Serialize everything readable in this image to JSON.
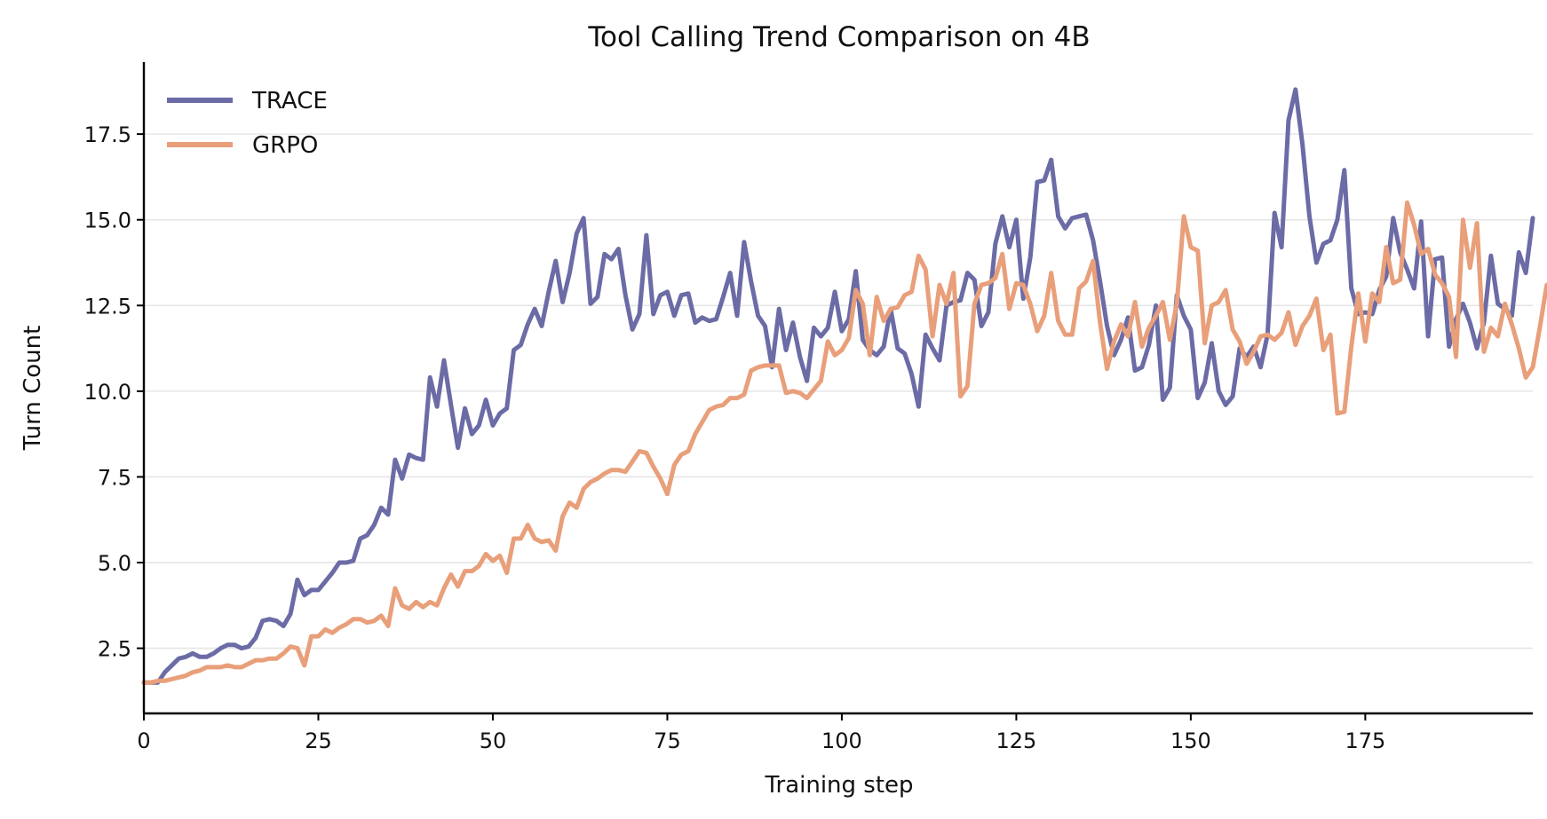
{
  "chart_data": {
    "type": "line",
    "title": "Tool Calling Trend Comparison on 4B",
    "xlabel": "Training step",
    "ylabel": "Turn Count",
    "xlim": [
      0,
      199
    ],
    "ylim": [
      0.6,
      19.6
    ],
    "xticks": [
      0,
      25,
      50,
      75,
      100,
      125,
      150,
      175
    ],
    "xtick_labels": [
      "0",
      "25",
      "50",
      "75",
      "100",
      "125",
      "150",
      "175"
    ],
    "yticks": [
      2.5,
      5.0,
      7.5,
      10.0,
      12.5,
      15.0,
      17.5
    ],
    "ytick_labels": [
      "2.5",
      "5.0",
      "7.5",
      "10.0",
      "12.5",
      "15.0",
      "17.5"
    ],
    "grid": "horizontal",
    "legend_position": "top-left",
    "series": [
      {
        "name": "TRACE",
        "color": "#6b6ba6",
        "values": [
          1.5,
          1.5,
          1.5,
          1.8,
          2.0,
          2.2,
          2.25,
          2.35,
          2.25,
          2.25,
          2.35,
          2.5,
          2.6,
          2.6,
          2.5,
          2.55,
          2.8,
          3.3,
          3.35,
          3.3,
          3.15,
          3.5,
          4.5,
          4.05,
          4.2,
          4.2,
          4.45,
          4.7,
          5.0,
          5.0,
          5.05,
          5.7,
          5.8,
          6.1,
          6.6,
          6.4,
          8.0,
          7.45,
          8.15,
          8.05,
          8.0,
          10.4,
          9.55,
          10.9,
          9.6,
          8.35,
          9.5,
          8.75,
          9.0,
          9.75,
          9.0,
          9.35,
          9.5,
          11.2,
          11.35,
          11.95,
          12.4,
          11.9,
          12.9,
          13.8,
          12.6,
          13.45,
          14.6,
          15.05,
          12.55,
          12.75,
          14.0,
          13.85,
          14.15,
          12.8,
          11.8,
          12.25,
          14.55,
          12.25,
          12.8,
          12.9,
          12.2,
          12.8,
          12.85,
          12.0,
          12.15,
          12.05,
          12.1,
          12.75,
          13.45,
          12.2,
          14.35,
          13.2,
          12.2,
          11.9,
          10.7,
          12.4,
          11.2,
          12.0,
          11.0,
          10.3,
          11.85,
          11.6,
          11.85,
          12.9,
          11.75,
          12.1,
          13.5,
          11.5,
          11.2,
          11.05,
          11.3,
          12.4,
          11.25,
          11.1,
          10.5,
          9.55,
          11.65,
          11.25,
          10.9,
          12.5,
          12.6,
          12.65,
          13.45,
          13.25,
          11.9,
          12.3,
          14.3,
          15.1,
          14.2,
          15.0,
          12.7,
          13.9,
          16.1,
          16.15,
          16.75,
          15.1,
          14.75,
          15.05,
          15.1,
          15.15,
          14.4,
          13.2,
          11.9,
          11.05,
          11.5,
          12.15,
          10.6,
          10.7,
          11.35,
          12.5,
          9.75,
          10.1,
          12.8,
          12.2,
          11.8,
          9.8,
          10.25,
          11.4,
          10.0,
          9.6,
          9.85,
          11.25,
          11.0,
          11.3,
          10.7,
          11.65,
          15.2,
          14.2,
          17.9,
          18.8,
          17.2,
          15.1,
          13.75,
          14.3,
          14.4,
          15.0,
          16.45,
          13.0,
          12.25,
          12.3,
          12.25,
          12.95,
          13.35,
          15.05,
          14.05,
          13.55,
          13.0,
          14.95,
          11.6,
          13.85,
          13.9,
          11.3,
          12.1,
          12.55,
          12.0,
          11.25,
          12.0,
          13.95,
          12.55,
          12.4,
          12.2,
          14.05,
          13.45,
          15.05
        ]
      },
      {
        "name": "GRPO",
        "color": "#e89f7a",
        "values": [
          1.5,
          1.5,
          1.55,
          1.55,
          1.6,
          1.65,
          1.7,
          1.8,
          1.85,
          1.95,
          1.95,
          1.95,
          2.0,
          1.95,
          1.95,
          2.05,
          2.15,
          2.15,
          2.2,
          2.2,
          2.35,
          2.55,
          2.5,
          2.0,
          2.85,
          2.85,
          3.05,
          2.95,
          3.1,
          3.2,
          3.35,
          3.35,
          3.25,
          3.3,
          3.45,
          3.15,
          4.25,
          3.75,
          3.65,
          3.85,
          3.7,
          3.85,
          3.75,
          4.25,
          4.65,
          4.3,
          4.75,
          4.75,
          4.9,
          5.25,
          5.05,
          5.2,
          4.7,
          5.7,
          5.7,
          6.1,
          5.7,
          5.6,
          5.65,
          5.35,
          6.35,
          6.75,
          6.6,
          7.15,
          7.35,
          7.45,
          7.6,
          7.7,
          7.7,
          7.65,
          7.95,
          8.25,
          8.2,
          7.8,
          7.45,
          7.0,
          7.85,
          8.15,
          8.25,
          8.75,
          9.1,
          9.45,
          9.55,
          9.6,
          9.8,
          9.8,
          9.9,
          10.6,
          10.7,
          10.75,
          10.75,
          10.75,
          9.95,
          10.0,
          9.95,
          9.8,
          10.05,
          10.3,
          11.45,
          11.05,
          11.2,
          11.55,
          12.95,
          12.55,
          11.05,
          12.75,
          12.05,
          12.4,
          12.45,
          12.8,
          12.9,
          13.95,
          13.55,
          11.6,
          13.1,
          12.55,
          13.45,
          9.85,
          10.15,
          12.55,
          13.1,
          13.15,
          13.3,
          14.0,
          12.4,
          13.15,
          13.1,
          12.55,
          11.75,
          12.2,
          13.45,
          12.05,
          11.65,
          11.65,
          13.0,
          13.2,
          13.8,
          12.0,
          10.65,
          11.45,
          11.95,
          11.6,
          12.6,
          11.3,
          11.85,
          12.2,
          12.6,
          11.5,
          12.55,
          15.1,
          14.2,
          14.1,
          11.4,
          12.5,
          12.6,
          12.95,
          11.8,
          11.45,
          10.8,
          11.15,
          11.6,
          11.65,
          11.5,
          11.7,
          12.3,
          11.35,
          11.9,
          12.2,
          12.7,
          11.2,
          11.65,
          9.35,
          9.4,
          11.3,
          12.85,
          11.45,
          12.85,
          12.6,
          14.2,
          13.15,
          13.25,
          15.5,
          14.85,
          14.0,
          14.15,
          13.4,
          13.15,
          12.75,
          11.0,
          15.0,
          13.6,
          14.9,
          11.15,
          11.85,
          11.6,
          12.55,
          11.95,
          11.25,
          10.4,
          10.7,
          11.85,
          13.1
        ]
      }
    ]
  }
}
